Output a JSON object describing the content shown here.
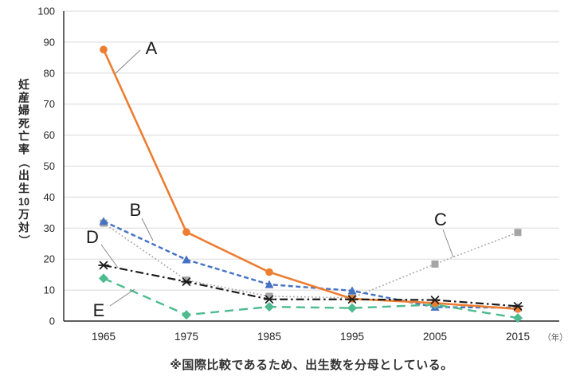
{
  "footnote": "※国際比較であるため、出生数を分母としている。",
  "colors": {
    "grid": "#D9D9D9",
    "axis": "#262626",
    "tick_text": "#262626",
    "leader": "#808080",
    "unit_text": "#595959",
    "annotation_text": "#1A1A1A"
  },
  "chart_data": {
    "type": "line",
    "title": "",
    "ylabel": "妊産婦死亡率（出生10万対）",
    "xlabel": "",
    "x_unit": "（年）",
    "ylim": [
      0,
      100
    ],
    "ytick_step": 10,
    "grid": true,
    "legend": "none (leader-line annotations A–E on plot)",
    "categories": [
      "1965",
      "1975",
      "1985",
      "1995",
      "2005",
      "2015"
    ],
    "series": [
      {
        "name": "A",
        "color": "#ED7D31",
        "marker": "circle",
        "line_style": "solid",
        "values": [
          87.6,
          28.7,
          15.8,
          7.2,
          5.8,
          3.9
        ]
      },
      {
        "name": "B",
        "color": "#4472C4",
        "marker": "triangle",
        "line_style": "dashed",
        "values": [
          32.2,
          19.8,
          11.8,
          9.8,
          4.5,
          4.3
        ]
      },
      {
        "name": "C",
        "color": "#A5A5A5",
        "marker": "square",
        "line_style": "dotted",
        "values": [
          31.6,
          13.2,
          8.0,
          7.5,
          18.4,
          28.6
        ]
      },
      {
        "name": "D",
        "color": "#1A1A1A",
        "marker": "asterisk",
        "line_style": "dashdot",
        "values": [
          18.0,
          12.7,
          7.0,
          7.0,
          6.8,
          4.8
        ]
      },
      {
        "name": "E",
        "color": "#4DBB8F",
        "marker": "diamond",
        "line_style": "longdash",
        "values": [
          13.8,
          2.0,
          4.6,
          4.2,
          5.3,
          1.0
        ]
      }
    ],
    "annotations": [
      "A",
      "B",
      "C",
      "D",
      "E"
    ]
  }
}
